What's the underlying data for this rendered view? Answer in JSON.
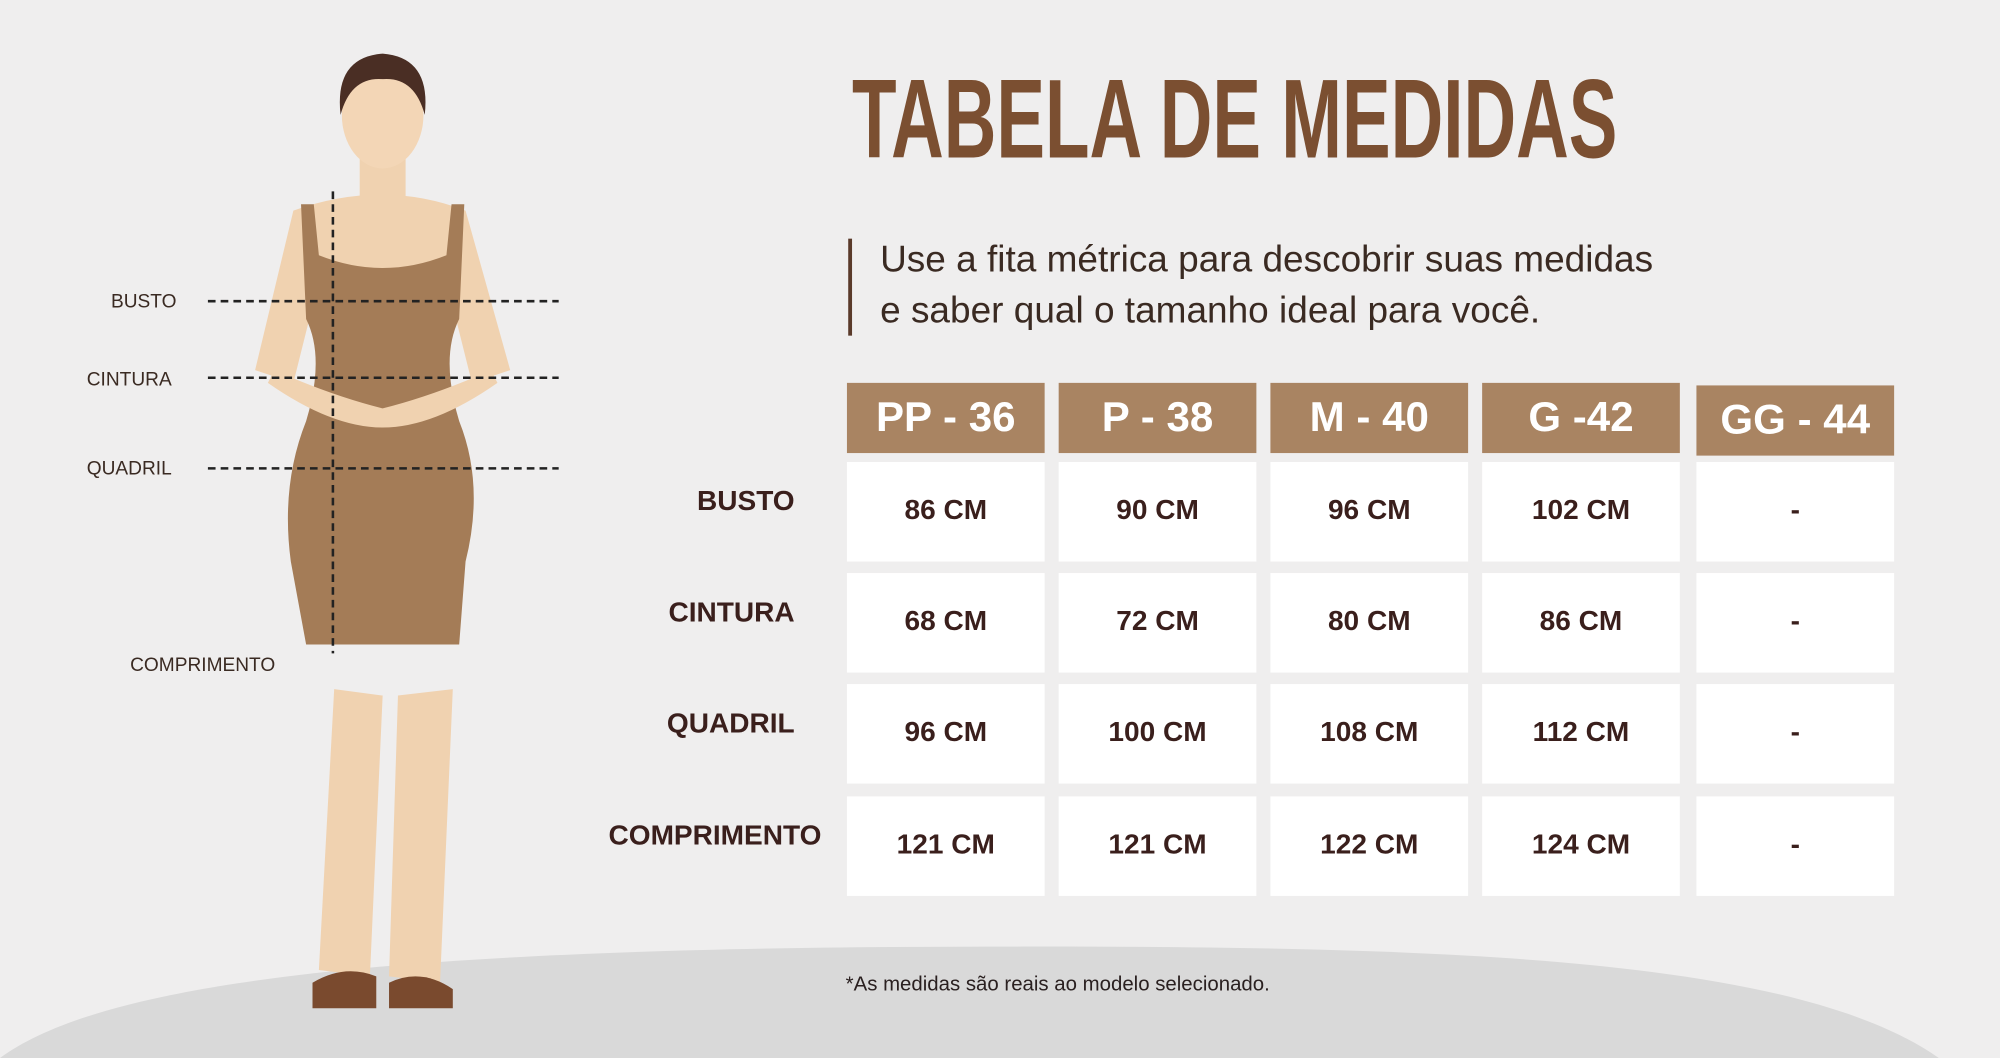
{
  "header": {
    "title": "TABELA DE MEDIDAS",
    "subtitle": [
      "Use a fita métrica para descobrir suas medidas",
      "e saber qual o tamanho ideal para você."
    ]
  },
  "figure": {
    "labels": [
      "BUSTO",
      "CINTURA",
      "QUADRIL",
      "COMPRIMENTO"
    ]
  },
  "table": {
    "columns": [
      "PP - 36",
      "P - 38",
      "M - 40",
      "G -42",
      "GG - 44"
    ],
    "rows": [
      {
        "label": "BUSTO",
        "cells": [
          "86 CM",
          "90 CM",
          "96 CM",
          "102 CM",
          "-"
        ]
      },
      {
        "label": "CINTURA",
        "cells": [
          "68 CM",
          "72 CM",
          "80 CM",
          "86 CM",
          "-"
        ]
      },
      {
        "label": "QUADRIL",
        "cells": [
          "96 CM",
          "100 CM",
          "108 CM",
          "112 CM",
          "-"
        ]
      },
      {
        "label": "COMPRIMENTO",
        "cells": [
          "121 CM",
          "121 CM",
          "122 CM",
          "124 CM",
          "-"
        ]
      }
    ]
  },
  "footnote": "*As medidas são reais ao modelo selecionado."
}
